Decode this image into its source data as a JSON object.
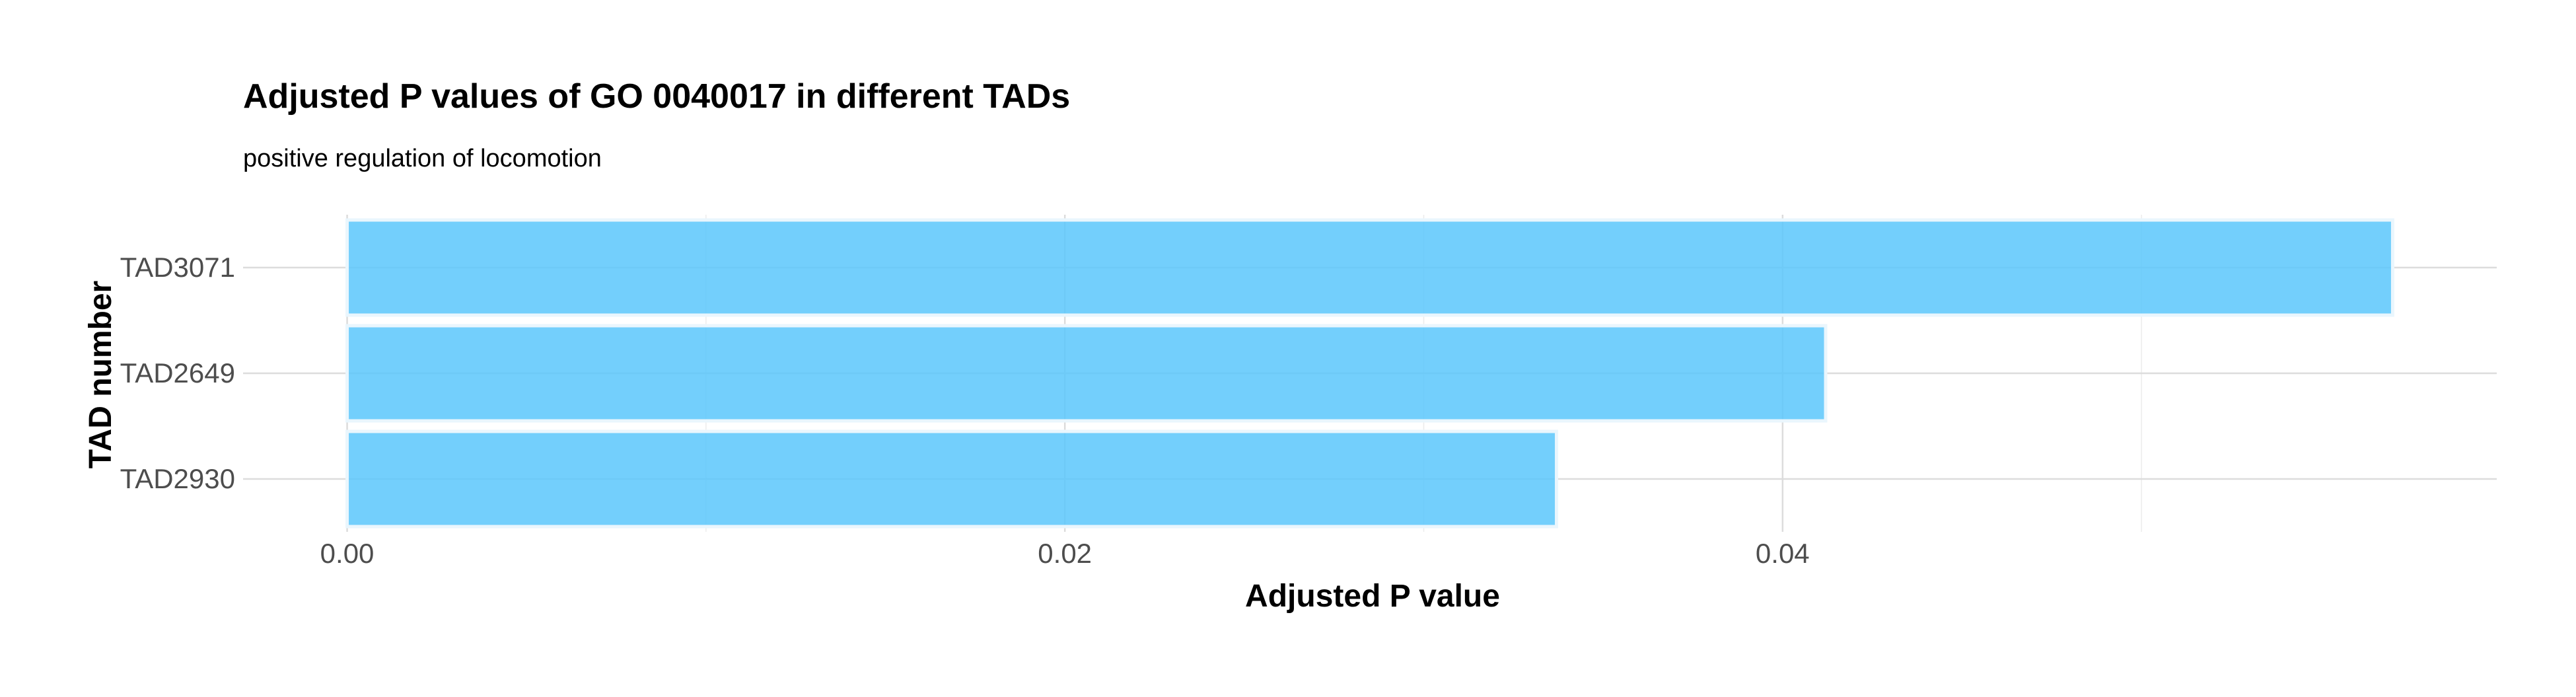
{
  "chart_data": {
    "type": "bar",
    "orientation": "horizontal",
    "title": "Adjusted P values of GO 0040017 in different TADs",
    "subtitle": "positive regulation of locomotion",
    "xlabel": "Adjusted P value",
    "ylabel": "TAD number",
    "categories": [
      "TAD3071",
      "TAD2649",
      "TAD2930"
    ],
    "values": [
      0.057,
      0.0412,
      0.0337
    ],
    "xlim": [
      -0.0029,
      0.0599
    ],
    "x_ticks": [
      0.0,
      0.02,
      0.04
    ],
    "x_tick_labels": [
      "0.00",
      "0.02",
      "0.04"
    ],
    "x_minor_ticks": [
      0.01,
      0.03,
      0.05
    ],
    "grid": true,
    "legend": "none",
    "colors": {
      "bar_fill": "#5bc7fb",
      "bar_outline": "#eaf6fd",
      "grid": "#dcdcdc"
    }
  }
}
